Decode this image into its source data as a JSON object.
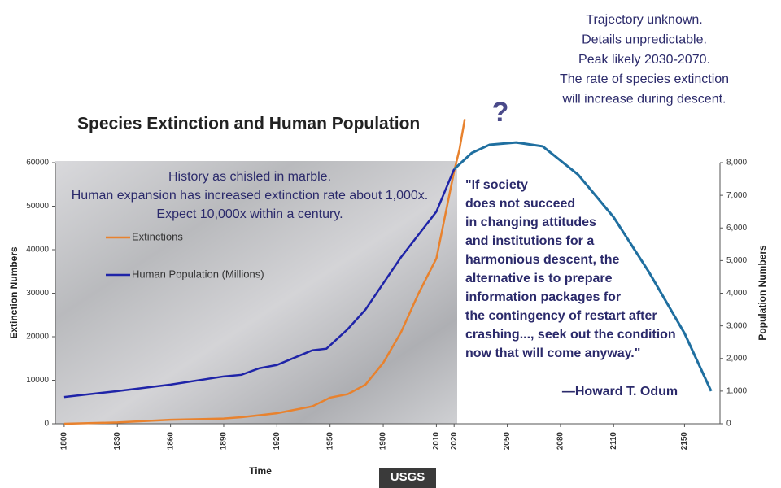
{
  "chart_data": {
    "type": "line",
    "title": "Species Extinction and Human Population",
    "xlabel": "Time",
    "ylabel": "Extinction Numbers",
    "y2label": "Population Numbers",
    "xlim": [
      1795,
      2170
    ],
    "xticks": [
      1800,
      1830,
      1860,
      1890,
      1920,
      1950,
      1980,
      2010,
      2020,
      2050,
      2080,
      2110,
      2150
    ],
    "ylim": [
      0,
      60000
    ],
    "yticks": [
      0,
      10000,
      20000,
      30000,
      40000,
      50000,
      60000
    ],
    "y2lim": [
      0,
      8000
    ],
    "y2ticks": [
      {
        "value": 0,
        "label": "0"
      },
      {
        "value": 1000,
        "label": "1,000"
      },
      {
        "value": 2000,
        "label": "2,000"
      },
      {
        "value": 3000,
        "label": "3,000"
      },
      {
        "value": 4000,
        "label": "4,000"
      },
      {
        "value": 5000,
        "label": "5,000"
      },
      {
        "value": 6000,
        "label": "6,000"
      },
      {
        "value": 7000,
        "label": "7,000"
      },
      {
        "value": 8000,
        "label": "8,000"
      }
    ],
    "series": [
      {
        "name": "Extinctions",
        "color": "#e8822e",
        "x": [
          1800,
          1830,
          1860,
          1890,
          1900,
          1920,
          1940,
          1950,
          1960,
          1970,
          1980,
          1990,
          2000,
          2010,
          2015,
          2020,
          2023,
          2026
        ],
        "values": [
          0,
          300,
          900,
          1200,
          1500,
          2400,
          4000,
          6000,
          6800,
          9000,
          14000,
          21000,
          30000,
          38000,
          48000,
          58000,
          63000,
          70000
        ]
      },
      {
        "name": "Human Population (Millions)",
        "color": "#1f24a8",
        "axis": "y2",
        "x": [
          1800,
          1830,
          1860,
          1890,
          1900,
          1910,
          1920,
          1940,
          1948,
          1960,
          1970,
          1980,
          1990,
          2000,
          2010,
          2020
        ],
        "values": [
          820,
          1000,
          1200,
          1450,
          1500,
          1700,
          1800,
          2250,
          2300,
          2900,
          3500,
          4300,
          5100,
          5800,
          6500,
          7800
        ]
      },
      {
        "color": "#1f6fa0",
        "axis": "y2",
        "x": [
          2020,
          2030,
          2040,
          2055,
          2070,
          2090,
          2110,
          2130,
          2150,
          2165
        ],
        "values": [
          7800,
          8300,
          8550,
          8620,
          8500,
          7630,
          6330,
          4640,
          2770,
          1000
        ]
      }
    ],
    "annotations": {
      "history": [
        "History as chisled in marble.",
        "Human expansion has increased extinction rate about 1,000x.",
        "Expect 10,000x within a century."
      ],
      "trajectory": [
        "Trajectory unknown.",
        "Details unpredictable.",
        "Peak likely 2030-2070.",
        "The rate of species extinction",
        "will increase during descent."
      ],
      "question": "?",
      "quote": [
        "\"If society",
        "does not succeed",
        "in changing attitudes",
        "and institutions for a",
        "harmonious descent, the",
        "alternative is to prepare",
        "information packages for",
        "the contingency of restart after",
        "crashing..., seek out the condition",
        "now that will come anyway.\""
      ],
      "attribution": "—Howard T. Odum"
    },
    "logo": "USGS"
  }
}
